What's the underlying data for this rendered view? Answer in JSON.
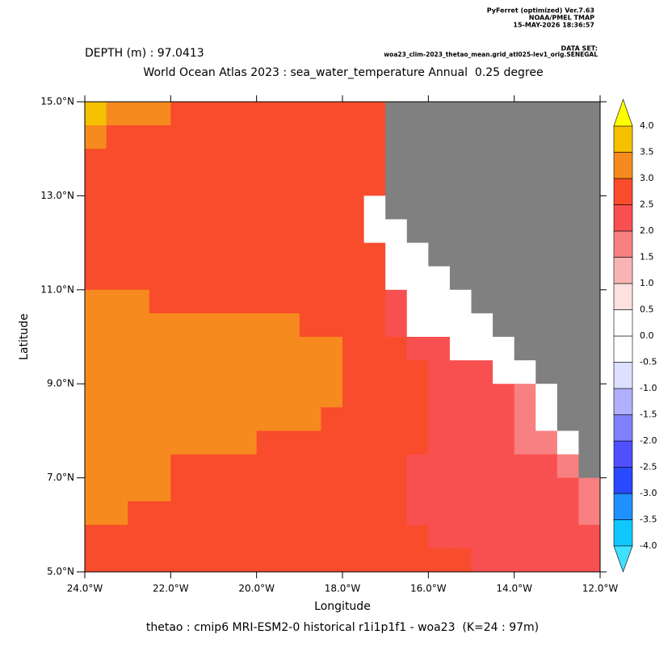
{
  "chart_data": {
    "type": "heatmap",
    "header": [
      "PyFerret (optimized) Ver.7.63",
      "NOAA/PMEL TMAP",
      "15-MAY-2026 18:36:57"
    ],
    "dataset_label": "DATA SET:",
    "dataset": "woa23_clim-2023_thetao_mean.grid_atl025-lev1_orig.SENEGAL",
    "depth_label": "DEPTH (m) : 97.0413",
    "title": "World Ocean Atlas 2023 : sea_water_temperature Annual  0.25 degree",
    "subtitle": "thetao : cmip6 MRI-ESM2-0 historical r1i1p1f1 - woa23  (K=24 : 97m)",
    "xlabel": "Longitude",
    "ylabel": "Latitude",
    "xlim": [
      -24,
      -12
    ],
    "ylim": [
      5,
      15
    ],
    "xticks": [
      {
        "value": -24,
        "label": "24.0°W"
      },
      {
        "value": -22,
        "label": "22.0°W"
      },
      {
        "value": -20,
        "label": "20.0°W"
      },
      {
        "value": -18,
        "label": "18.0°W"
      },
      {
        "value": -16,
        "label": "16.0°W"
      },
      {
        "value": -14,
        "label": "14.0°W"
      },
      {
        "value": -12,
        "label": "12.0°W"
      }
    ],
    "yticks": [
      {
        "value": 5,
        "label": "5.0°N"
      },
      {
        "value": 7,
        "label": "7.0°N"
      },
      {
        "value": 9,
        "label": "9.0°N"
      },
      {
        "value": 11,
        "label": "11.0°N"
      },
      {
        "value": 13,
        "label": "13.0°N"
      },
      {
        "value": 15,
        "label": "15.0°N"
      }
    ],
    "x": [
      -23.75,
      -23.25,
      -22.75,
      -22.25,
      -21.75,
      -21.25,
      -20.75,
      -20.25,
      -19.75,
      -19.25,
      -18.75,
      -18.25,
      -17.75,
      -17.25,
      -16.75,
      -16.25,
      -15.75,
      -15.25,
      -14.75,
      -14.25,
      -13.75,
      -13.25,
      -12.75,
      -12.25
    ],
    "y": [
      14.75,
      14.25,
      13.75,
      13.25,
      12.75,
      12.25,
      11.75,
      11.25,
      10.75,
      10.25,
      9.75,
      9.25,
      8.75,
      8.25,
      7.75,
      7.25,
      6.75,
      6.25,
      5.75,
      5.25
    ],
    "land_color": "#808080",
    "levels": [
      {
        "value": -4,
        "label": "-4.0"
      },
      {
        "value": -3.5,
        "label": "-3.5"
      },
      {
        "value": -3,
        "label": "-3.0"
      },
      {
        "value": -2.5,
        "label": "-2.5"
      },
      {
        "value": -2,
        "label": "-2.0"
      },
      {
        "value": -1.5,
        "label": "-1.5"
      },
      {
        "value": -1,
        "label": "-1.0"
      },
      {
        "value": -0.5,
        "label": "-0.5"
      },
      {
        "value": 0,
        "label": "0.0"
      },
      {
        "value": 0.5,
        "label": "0.5"
      },
      {
        "value": 1,
        "label": "1.0"
      },
      {
        "value": 1.5,
        "label": "1.5"
      },
      {
        "value": 2,
        "label": "2.0"
      },
      {
        "value": 2.5,
        "label": "2.5"
      },
      {
        "value": 3,
        "label": "3.0"
      },
      {
        "value": 3.5,
        "label": "3.5"
      },
      {
        "value": 4,
        "label": "4.0"
      }
    ],
    "colors": [
      "#10c8ff",
      "#2090ff",
      "#2a48ff",
      "#5050ff",
      "#8080ff",
      "#b0b0ff",
      "#dde0ff",
      "#ffffff",
      "#ffffff",
      "#fde0e0",
      "#f8b4b4",
      "#f88080",
      "#f85050",
      "#f94c2c",
      "#f78a1e",
      "#f5c000"
    ],
    "under_color": "#40e0ff",
    "over_color": "#ffff00",
    "z": [
      [
        3.75,
        3.25,
        3.25,
        3.25,
        2.75,
        2.75,
        2.75,
        2.75,
        2.75,
        2.75,
        2.75,
        2.75,
        2.75,
        2.75,
        null,
        null,
        null,
        null,
        null,
        null,
        null,
        null,
        null,
        null
      ],
      [
        3.25,
        2.75,
        2.75,
        2.75,
        2.75,
        2.75,
        2.75,
        2.75,
        2.75,
        2.75,
        2.75,
        2.75,
        2.75,
        2.75,
        null,
        null,
        null,
        null,
        null,
        null,
        null,
        null,
        null,
        null
      ],
      [
        2.75,
        2.75,
        2.75,
        2.75,
        2.75,
        2.75,
        2.75,
        2.75,
        2.75,
        2.75,
        2.75,
        2.75,
        2.75,
        2.75,
        null,
        null,
        null,
        null,
        null,
        null,
        null,
        null,
        null,
        null
      ],
      [
        2.75,
        2.75,
        2.75,
        2.75,
        2.75,
        2.75,
        2.75,
        2.75,
        2.75,
        2.75,
        2.75,
        2.75,
        2.75,
        2.75,
        null,
        null,
        null,
        null,
        null,
        null,
        null,
        null,
        null,
        null
      ],
      [
        2.75,
        2.75,
        2.75,
        2.75,
        2.75,
        2.75,
        2.75,
        2.75,
        2.75,
        2.75,
        2.75,
        2.75,
        2.75,
        0.25,
        null,
        null,
        null,
        null,
        null,
        null,
        null,
        null,
        null,
        null
      ],
      [
        2.75,
        2.75,
        2.75,
        2.75,
        2.75,
        2.75,
        2.75,
        2.75,
        2.75,
        2.75,
        2.75,
        2.75,
        2.75,
        0.25,
        0.25,
        null,
        null,
        null,
        null,
        null,
        null,
        null,
        null,
        null
      ],
      [
        2.75,
        2.75,
        2.75,
        2.75,
        2.75,
        2.75,
        2.75,
        2.75,
        2.75,
        2.75,
        2.75,
        2.75,
        2.75,
        2.75,
        0.25,
        0.25,
        null,
        null,
        null,
        null,
        null,
        null,
        null,
        null
      ],
      [
        2.75,
        2.75,
        2.75,
        2.75,
        2.75,
        2.75,
        2.75,
        2.75,
        2.75,
        2.75,
        2.75,
        2.75,
        2.75,
        2.75,
        0.25,
        0.25,
        0.25,
        null,
        null,
        null,
        null,
        null,
        null,
        null
      ],
      [
        3.25,
        3.25,
        3.25,
        2.75,
        2.75,
        2.75,
        2.75,
        2.75,
        2.75,
        2.75,
        2.75,
        2.75,
        2.75,
        2.75,
        2.25,
        0.25,
        0.25,
        0.25,
        null,
        null,
        null,
        null,
        null,
        null
      ],
      [
        3.25,
        3.25,
        3.25,
        3.25,
        3.25,
        3.25,
        3.25,
        3.25,
        3.25,
        3.25,
        2.75,
        2.75,
        2.75,
        2.75,
        2.25,
        0.25,
        0.25,
        0.25,
        0.25,
        null,
        null,
        null,
        null,
        null
      ],
      [
        3.25,
        3.25,
        3.25,
        3.25,
        3.25,
        3.25,
        3.25,
        3.25,
        3.25,
        3.25,
        3.25,
        3.25,
        2.75,
        2.75,
        2.75,
        2.25,
        2.25,
        0.25,
        0.25,
        0.25,
        null,
        null,
        null,
        null
      ],
      [
        3.25,
        3.25,
        3.25,
        3.25,
        3.25,
        3.25,
        3.25,
        3.25,
        3.25,
        3.25,
        3.25,
        3.25,
        2.75,
        2.75,
        2.75,
        2.75,
        2.25,
        2.25,
        2.25,
        0.25,
        0.25,
        null,
        null,
        null
      ],
      [
        3.25,
        3.25,
        3.25,
        3.25,
        3.25,
        3.25,
        3.25,
        3.25,
        3.25,
        3.25,
        3.25,
        3.25,
        2.75,
        2.75,
        2.75,
        2.75,
        2.25,
        2.25,
        2.25,
        2.25,
        1.75,
        0.25,
        null,
        null
      ],
      [
        3.25,
        3.25,
        3.25,
        3.25,
        3.25,
        3.25,
        3.25,
        3.25,
        3.25,
        3.25,
        3.25,
        2.75,
        2.75,
        2.75,
        2.75,
        2.75,
        2.25,
        2.25,
        2.25,
        2.25,
        1.75,
        0.25,
        null,
        null
      ],
      [
        3.25,
        3.25,
        3.25,
        3.25,
        3.25,
        3.25,
        3.25,
        3.25,
        2.75,
        2.75,
        2.75,
        2.75,
        2.75,
        2.75,
        2.75,
        2.75,
        2.25,
        2.25,
        2.25,
        2.25,
        1.75,
        1.75,
        0.25,
        null
      ],
      [
        3.25,
        3.25,
        3.25,
        3.25,
        2.75,
        2.75,
        2.75,
        2.75,
        2.75,
        2.75,
        2.75,
        2.75,
        2.75,
        2.75,
        2.75,
        2.25,
        2.25,
        2.25,
        2.25,
        2.25,
        2.25,
        2.25,
        1.75,
        null
      ],
      [
        3.25,
        3.25,
        3.25,
        3.25,
        2.75,
        2.75,
        2.75,
        2.75,
        2.75,
        2.75,
        2.75,
        2.75,
        2.75,
        2.75,
        2.75,
        2.25,
        2.25,
        2.25,
        2.25,
        2.25,
        2.25,
        2.25,
        2.25,
        1.75
      ],
      [
        3.25,
        3.25,
        2.75,
        2.75,
        2.75,
        2.75,
        2.75,
        2.75,
        2.75,
        2.75,
        2.75,
        2.75,
        2.75,
        2.75,
        2.75,
        2.25,
        2.25,
        2.25,
        2.25,
        2.25,
        2.25,
        2.25,
        2.25,
        1.75
      ],
      [
        2.75,
        2.75,
        2.75,
        2.75,
        2.75,
        2.75,
        2.75,
        2.75,
        2.75,
        2.75,
        2.75,
        2.75,
        2.75,
        2.75,
        2.75,
        2.75,
        2.25,
        2.25,
        2.25,
        2.25,
        2.25,
        2.25,
        2.25,
        2.25
      ],
      [
        2.75,
        2.75,
        2.75,
        2.75,
        2.75,
        2.75,
        2.75,
        2.75,
        2.75,
        2.75,
        2.75,
        2.75,
        2.75,
        2.75,
        2.75,
        2.75,
        2.75,
        2.75,
        2.25,
        2.25,
        2.25,
        2.25,
        2.25,
        2.25
      ]
    ]
  }
}
